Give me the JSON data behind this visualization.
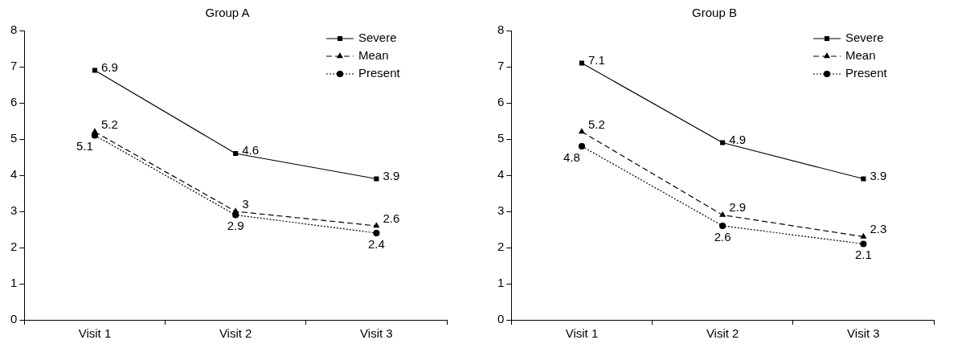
{
  "chart_data": [
    {
      "type": "line",
      "title": "Group A",
      "categories": [
        "Visit 1",
        "Visit 2",
        "Visit 3"
      ],
      "ylim": [
        0,
        8
      ],
      "yticks": [
        0,
        1,
        2,
        3,
        4,
        5,
        6,
        7,
        8
      ],
      "grid": false,
      "legend": "top right",
      "data_labels": true,
      "series": [
        {
          "name": "Severe",
          "color": "#000000",
          "values": [
            6.9,
            4.6,
            3.9
          ],
          "line_style": "solid",
          "marker": "square"
        },
        {
          "name": "Mean",
          "color": "#000000",
          "values": [
            5.2,
            3,
            2.6
          ],
          "line_style": "dashed",
          "marker": "triangle"
        },
        {
          "name": "Present",
          "color": "#000000",
          "values": [
            5.1,
            2.9,
            2.4
          ],
          "line_style": "dotted",
          "marker": "circle"
        }
      ]
    },
    {
      "type": "line",
      "title": "Group B",
      "categories": [
        "Visit 1",
        "Visit 2",
        "Visit 3"
      ],
      "ylim": [
        0,
        8
      ],
      "yticks": [
        0,
        1,
        2,
        3,
        4,
        5,
        6,
        7,
        8
      ],
      "grid": false,
      "legend": "top right",
      "data_labels": true,
      "series": [
        {
          "name": "Severe",
          "color": "#000000",
          "values": [
            7.1,
            4.9,
            3.9
          ],
          "line_style": "solid",
          "marker": "square"
        },
        {
          "name": "Mean",
          "color": "#000000",
          "values": [
            5.2,
            2.9,
            2.3
          ],
          "line_style": "dashed",
          "marker": "triangle"
        },
        {
          "name": "Present",
          "color": "#000000",
          "values": [
            4.8,
            2.6,
            2.1
          ],
          "line_style": "dotted",
          "marker": "circle"
        }
      ]
    }
  ]
}
